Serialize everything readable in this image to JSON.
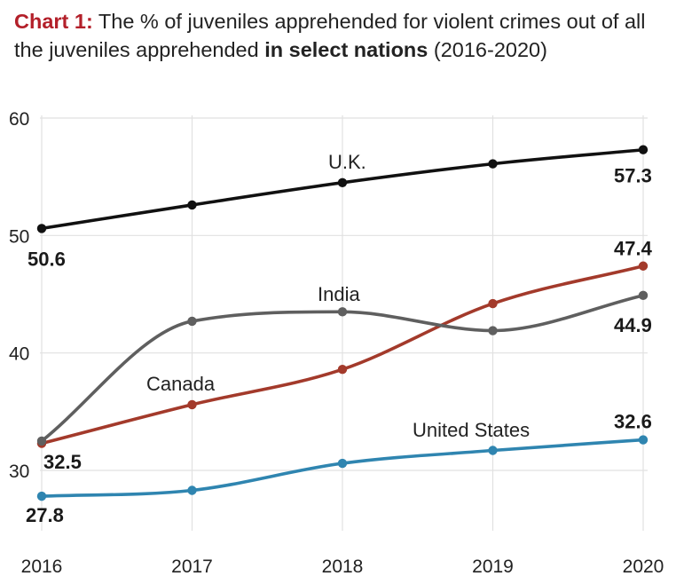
{
  "title": {
    "lead": "Chart 1:",
    "text1": " The % of juveniles apprehended for violent crimes out of all the juveniles apprehended ",
    "bold": "in select nations",
    "text2": " (2016-2020)"
  },
  "chart_data": {
    "type": "line",
    "title": "Chart 1: The % of juveniles apprehended for violent crimes out of all the juveniles apprehended in select nations (2016-2020)",
    "xlabel": "",
    "ylabel": "",
    "categories": [
      "2016",
      "2017",
      "2018",
      "2019",
      "2020"
    ],
    "ylim": [
      25,
      60
    ],
    "yticks": [
      30,
      40,
      50,
      60
    ],
    "ytick_labels": [
      "30",
      "40",
      "50",
      "60"
    ],
    "grid": true,
    "series": [
      {
        "name": "U.K.",
        "color": "#111111",
        "values": [
          50.6,
          52.6,
          54.5,
          56.1,
          57.3
        ],
        "labels": {
          "first": "50.6",
          "last": "57.3"
        }
      },
      {
        "name": "Canada",
        "color": "#a33a2b",
        "values": [
          32.3,
          35.6,
          38.6,
          44.2,
          47.4
        ],
        "labels": {
          "last": "47.4"
        }
      },
      {
        "name": "India",
        "color": "#5f5f5f",
        "values": [
          32.5,
          42.7,
          43.5,
          41.9,
          44.9
        ],
        "labels": {
          "first": "32.5",
          "last": "44.9"
        }
      },
      {
        "name": "United States",
        "color": "#2f85b0",
        "values": [
          27.8,
          28.3,
          30.6,
          31.7,
          32.6
        ],
        "labels": {
          "first": "27.8",
          "last": "32.6"
        }
      }
    ]
  }
}
